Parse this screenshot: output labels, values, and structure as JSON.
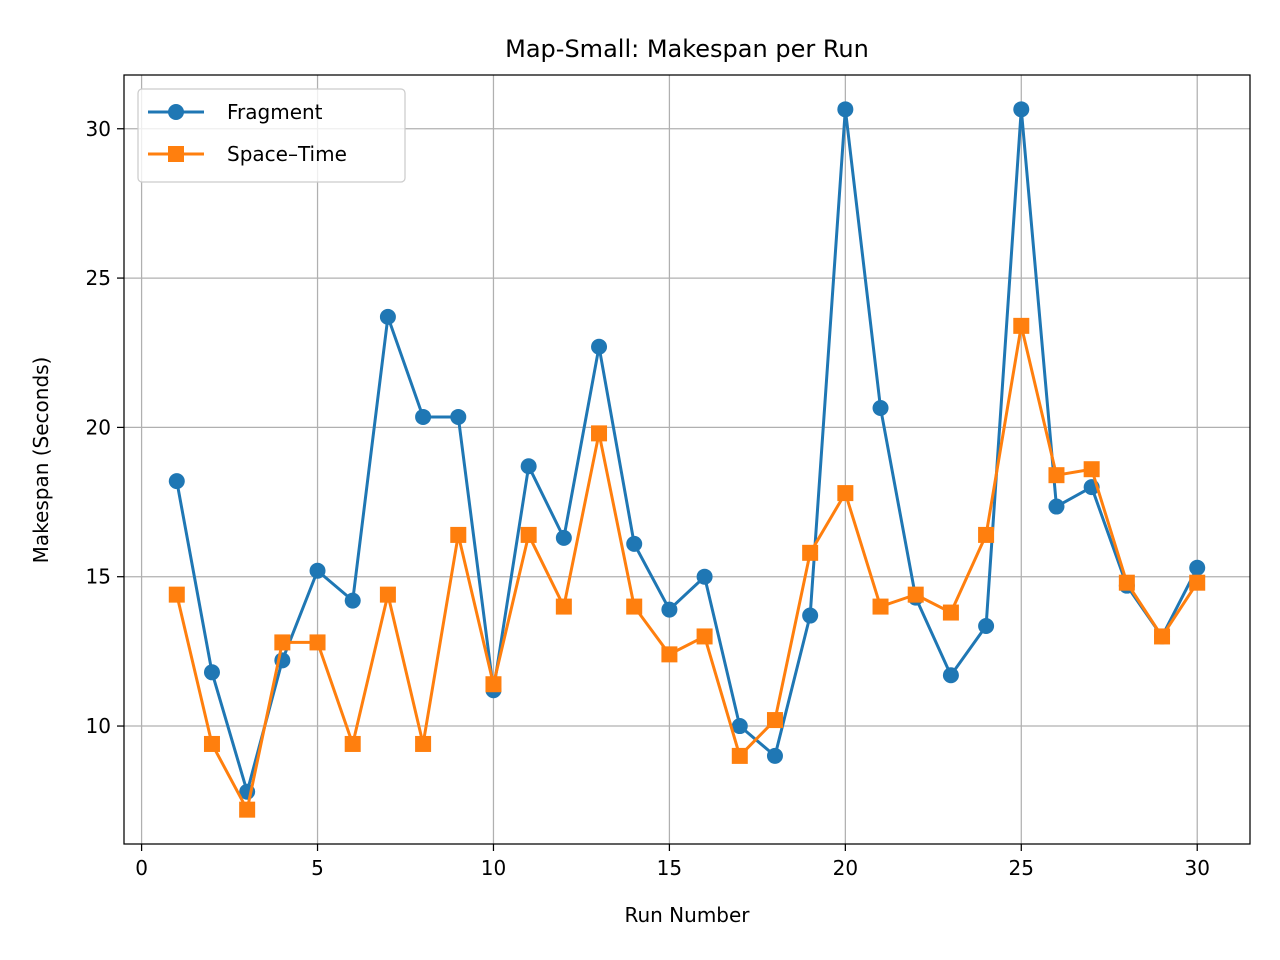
{
  "chart_data": {
    "type": "line",
    "title": "Map-Small: Makespan per Run",
    "xlabel": "Run Number",
    "ylabel": "Makespan (Seconds)",
    "xlim": [
      -0.5,
      31.5
    ],
    "ylim": [
      6.05,
      31.8
    ],
    "xticks": [
      0,
      5,
      10,
      15,
      20,
      25,
      30
    ],
    "yticks": [
      10,
      15,
      20,
      25,
      30
    ],
    "grid": true,
    "legend_position": "top-left",
    "x": [
      1,
      2,
      3,
      4,
      5,
      6,
      7,
      8,
      9,
      10,
      11,
      12,
      13,
      14,
      15,
      16,
      17,
      18,
      19,
      20,
      21,
      22,
      23,
      24,
      25,
      26,
      27,
      28,
      29,
      30
    ],
    "series": [
      {
        "name": "Fragment",
        "marker": "circle",
        "color": "#1f77b4",
        "values": [
          18.2,
          11.8,
          7.8,
          12.2,
          15.2,
          14.2,
          23.7,
          20.35,
          20.35,
          11.2,
          18.7,
          16.3,
          22.7,
          16.1,
          13.9,
          15.0,
          10.0,
          9.0,
          13.7,
          30.65,
          20.65,
          14.3,
          11.7,
          13.35,
          30.65,
          17.35,
          18.0,
          14.7,
          13.0,
          15.3
        ]
      },
      {
        "name": "Space–Time",
        "marker": "square",
        "color": "#ff7f0e",
        "values": [
          14.4,
          9.4,
          7.2,
          12.8,
          12.8,
          9.4,
          14.4,
          9.4,
          16.4,
          11.4,
          16.4,
          14.0,
          19.8,
          14.0,
          12.4,
          13.0,
          9.0,
          10.2,
          15.8,
          17.8,
          14.0,
          14.4,
          13.8,
          16.4,
          23.4,
          18.4,
          18.6,
          14.8,
          13.0,
          14.8
        ]
      }
    ]
  }
}
